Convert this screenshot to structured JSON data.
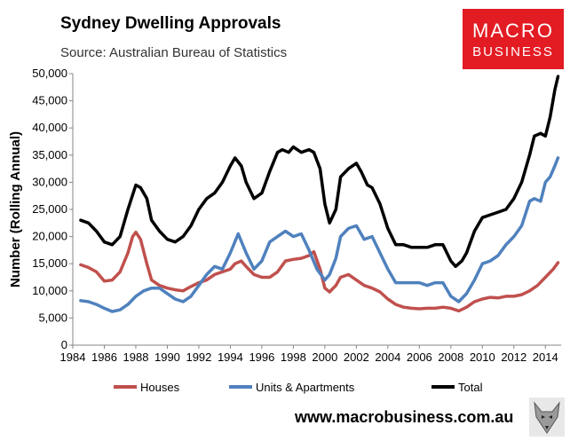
{
  "header": {
    "title": "Sydney Dwelling Approvals",
    "subtitle": "Source: Australian Bureau of Statistics"
  },
  "logo": {
    "line1": "MACRO",
    "line2": "BUSINESS",
    "color": "#e31b23"
  },
  "footer": {
    "website": "www.macrobusiness.com.au",
    "icon": "fox-icon"
  },
  "chart_data": {
    "type": "line",
    "ylabel": "Number (Rolling Annual)",
    "xlim": [
      1984,
      2015
    ],
    "ylim": [
      0,
      50000
    ],
    "x_ticks": [
      1984,
      1986,
      1988,
      1990,
      1992,
      1994,
      1996,
      1998,
      2000,
      2002,
      2004,
      2006,
      2008,
      2010,
      2012,
      2014
    ],
    "y_ticks": [
      0,
      5000,
      10000,
      15000,
      20000,
      25000,
      30000,
      35000,
      40000,
      45000,
      50000
    ],
    "y_tick_labels": [
      "0",
      "5,000",
      "10,000",
      "15,000",
      "20,000",
      "25,000",
      "30,000",
      "35,000",
      "40,000",
      "45,000",
      "50,000"
    ],
    "grid": false,
    "legend_position": "bottom",
    "series": [
      {
        "name": "Houses",
        "color": "#c0504d",
        "x": [
          1984.5,
          1985,
          1985.5,
          1986,
          1986.5,
          1987,
          1987.5,
          1987.8,
          1988,
          1988.3,
          1988.7,
          1989,
          1989.5,
          1990,
          1990.5,
          1991,
          1991.5,
          1992,
          1992.5,
          1993,
          1993.5,
          1994,
          1994.3,
          1994.7,
          1995,
          1995.5,
          1996,
          1996.5,
          1997,
          1997.5,
          1998,
          1998.5,
          1999,
          1999.3,
          1999.7,
          2000,
          2000.3,
          2000.7,
          2001,
          2001.5,
          2002,
          2002.5,
          2003,
          2003.5,
          2004,
          2004.5,
          2005,
          2005.5,
          2006,
          2006.5,
          2007,
          2007.5,
          2008,
          2008.5,
          2009,
          2009.5,
          2010,
          2010.5,
          2011,
          2011.5,
          2012,
          2012.5,
          2013,
          2013.5,
          2014,
          2014.5,
          2014.8
        ],
        "values": [
          14800,
          14300,
          13500,
          11800,
          12000,
          13500,
          17000,
          20000,
          20800,
          19500,
          15000,
          12000,
          11000,
          10500,
          10200,
          10000,
          10800,
          11500,
          12000,
          13000,
          13500,
          14000,
          15000,
          15500,
          14500,
          13000,
          12500,
          12500,
          13500,
          15500,
          15800,
          16000,
          16500,
          17200,
          14000,
          10500,
          9800,
          11000,
          12500,
          13000,
          12000,
          11000,
          10500,
          9800,
          8500,
          7500,
          7000,
          6800,
          6700,
          6800,
          6800,
          7000,
          6800,
          6300,
          7000,
          8000,
          8500,
          8800,
          8700,
          9000,
          9000,
          9300,
          10000,
          11000,
          12500,
          14000,
          15200
        ]
      },
      {
        "name": "Units & Apartments",
        "color": "#4f81bd",
        "x": [
          1984.5,
          1985,
          1985.5,
          1986,
          1986.5,
          1987,
          1987.5,
          1988,
          1988.5,
          1989,
          1989.5,
          1990,
          1990.5,
          1991,
          1991.5,
          1992,
          1992.5,
          1993,
          1993.5,
          1994,
          1994.5,
          1995,
          1995.5,
          1996,
          1996.5,
          1997,
          1997.5,
          1998,
          1998.5,
          1999,
          1999.5,
          2000,
          2000.3,
          2000.7,
          2001,
          2001.5,
          2002,
          2002.5,
          2003,
          2003.5,
          2004,
          2004.5,
          2005,
          2005.5,
          2006,
          2006.5,
          2007,
          2007.5,
          2008,
          2008.5,
          2009,
          2009.5,
          2010,
          2010.5,
          2011,
          2011.5,
          2012,
          2012.5,
          2013,
          2013.3,
          2013.7,
          2014,
          2014.3,
          2014.6,
          2014.8
        ],
        "values": [
          8200,
          8000,
          7500,
          6800,
          6200,
          6500,
          7500,
          9000,
          10000,
          10500,
          10500,
          9500,
          8500,
          8000,
          9000,
          11000,
          13000,
          14500,
          14000,
          17000,
          20500,
          17000,
          14000,
          15500,
          19000,
          20000,
          21000,
          20000,
          20500,
          17500,
          14000,
          12000,
          13000,
          16000,
          20000,
          21500,
          22000,
          19500,
          20000,
          17000,
          14000,
          11500,
          11500,
          11500,
          11500,
          11000,
          11500,
          11500,
          9000,
          8000,
          9500,
          12000,
          15000,
          15500,
          16500,
          18500,
          20000,
          22000,
          26500,
          27000,
          26500,
          30000,
          31000,
          33000,
          34500
        ]
      },
      {
        "name": "Total",
        "color": "#000000",
        "x": [
          1984.5,
          1985,
          1985.5,
          1986,
          1986.5,
          1987,
          1987.5,
          1988,
          1988.3,
          1988.7,
          1989,
          1989.5,
          1990,
          1990.5,
          1991,
          1991.5,
          1992,
          1992.5,
          1993,
          1993.5,
          1994,
          1994.3,
          1994.7,
          1995,
          1995.5,
          1996,
          1996.5,
          1997,
          1997.3,
          1997.7,
          1998,
          1998.5,
          1999,
          1999.3,
          1999.7,
          2000,
          2000.3,
          2000.7,
          2001,
          2001.5,
          2002,
          2002.3,
          2002.7,
          2003,
          2003.5,
          2004,
          2004.5,
          2005,
          2005.5,
          2006,
          2006.5,
          2007,
          2007.5,
          2008,
          2008.3,
          2008.7,
          2009,
          2009.5,
          2010,
          2010.5,
          2011,
          2011.5,
          2012,
          2012.5,
          2013,
          2013.3,
          2013.7,
          2014,
          2014.3,
          2014.6,
          2014.8
        ],
        "values": [
          23000,
          22500,
          21000,
          19000,
          18500,
          20000,
          25000,
          29500,
          29000,
          27000,
          23000,
          21000,
          19500,
          19000,
          20000,
          22000,
          25000,
          27000,
          28000,
          30000,
          33000,
          34500,
          33000,
          30000,
          27000,
          28000,
          32000,
          35500,
          36000,
          35500,
          36500,
          35500,
          36000,
          35500,
          32500,
          26000,
          22500,
          25000,
          31000,
          32500,
          33500,
          32000,
          29500,
          29000,
          26000,
          21500,
          18500,
          18500,
          18000,
          18000,
          18000,
          18500,
          18500,
          15500,
          14500,
          15500,
          17000,
          21000,
          23500,
          24000,
          24500,
          25000,
          27000,
          30000,
          35000,
          38500,
          39000,
          38500,
          42000,
          47000,
          49500
        ]
      }
    ]
  }
}
